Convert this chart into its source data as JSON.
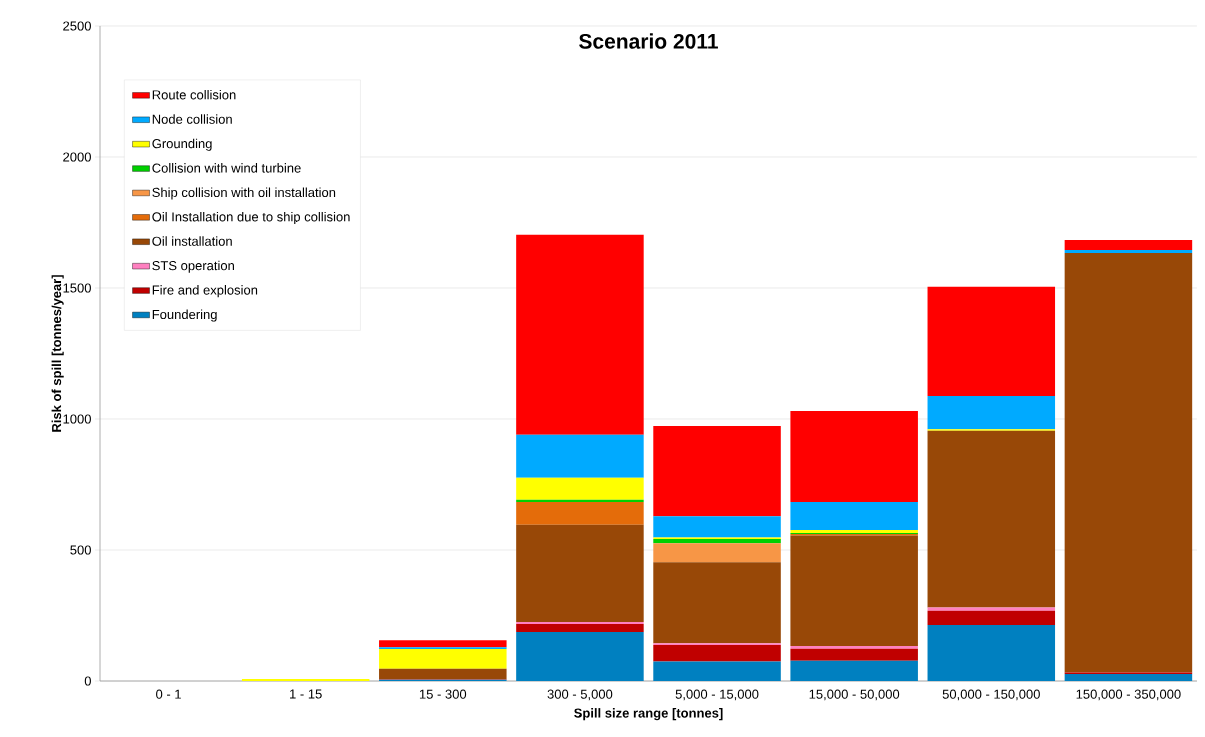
{
  "chart_data": {
    "type": "bar",
    "stacked": true,
    "title": "Scenario 2011",
    "xlabel": "Spill size range [tonnes]",
    "ylabel": "Risk of spill [tonnes/year]",
    "categories": [
      "0 - 1",
      "1 - 15",
      "15 - 300",
      "300 - 5,000",
      "5,000 - 15,000",
      "15,000 - 50,000",
      "50,000 - 150,000",
      "150,000 - 350,000"
    ],
    "series": [
      {
        "name": "Foundering",
        "color": "#0080c0",
        "values": [
          0,
          0,
          5,
          187,
          74,
          77,
          214,
          27
        ]
      },
      {
        "name": "Fire and explosion",
        "color": "#c00000",
        "values": [
          0,
          0,
          2,
          31,
          63,
          46,
          54,
          5
        ]
      },
      {
        "name": "STS operation",
        "color": "#ff80c0",
        "values": [
          0,
          0,
          0,
          7,
          7,
          11,
          13,
          0
        ]
      },
      {
        "name": "Oil installation",
        "color": "#984807",
        "values": [
          0,
          0,
          40,
          371,
          309,
          421,
          674,
          1602
        ]
      },
      {
        "name": "Oil Installation due to ship collision",
        "color": "#e46c0a",
        "values": [
          0,
          0,
          0,
          87,
          0,
          6,
          0,
          0
        ]
      },
      {
        "name": "Ship collision with oil installation",
        "color": "#f79646",
        "values": [
          0,
          0,
          0,
          0,
          73,
          0,
          0,
          0
        ]
      },
      {
        "name": "Collision with wind turbine",
        "color": "#00d000",
        "values": [
          0,
          0,
          0,
          9,
          16,
          4,
          0,
          0
        ]
      },
      {
        "name": "Grounding",
        "color": "#ffff00",
        "values": [
          0,
          8,
          75,
          84,
          6,
          11,
          6,
          0
        ]
      },
      {
        "name": "Node collision",
        "color": "#00aaff",
        "values": [
          0,
          0,
          7,
          164,
          81,
          107,
          127,
          11
        ]
      },
      {
        "name": "Route collision",
        "color": "#ff0000",
        "values": [
          0,
          0,
          27,
          763,
          344,
          348,
          417,
          38
        ]
      }
    ],
    "ylim": [
      0,
      2500
    ],
    "yticks": [
      0,
      500,
      1000,
      1500,
      2000,
      2500
    ],
    "grid": "y",
    "legend": "top left"
  }
}
